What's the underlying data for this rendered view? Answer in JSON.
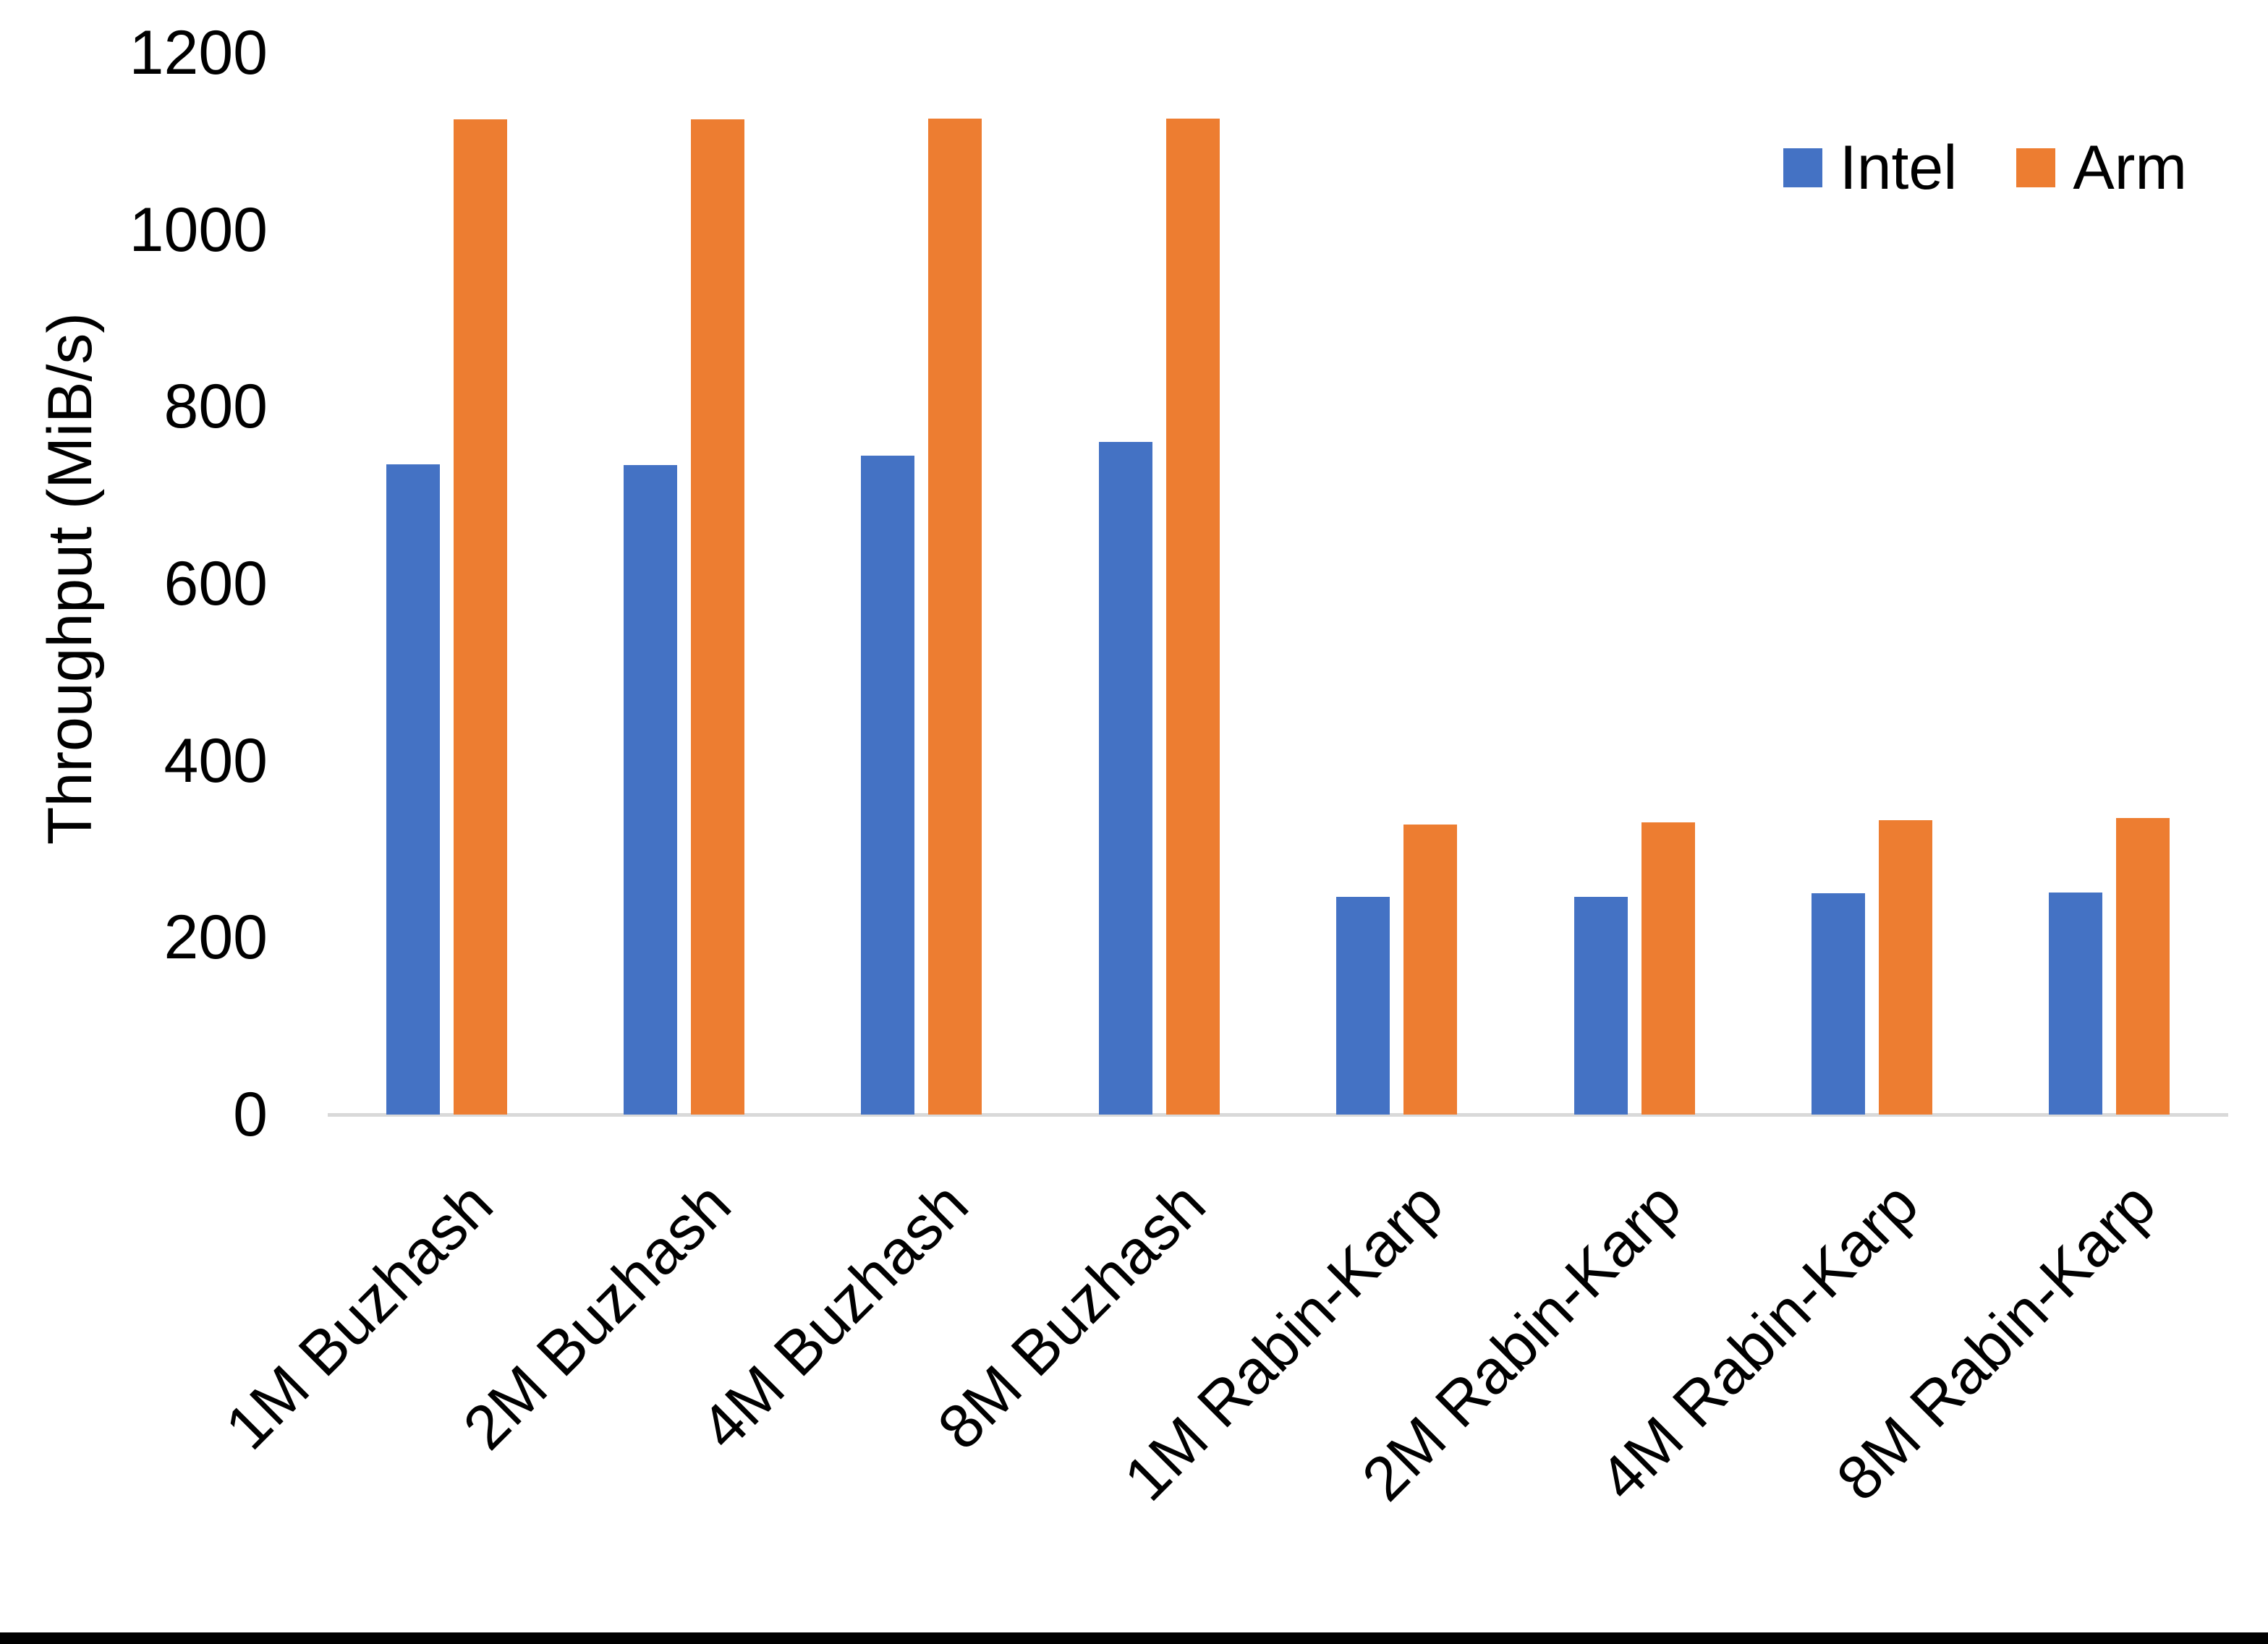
{
  "chart_data": {
    "type": "bar",
    "title": "",
    "xlabel": "",
    "ylabel": "Throughput (MiB/s)",
    "ylim": [
      0,
      1200
    ],
    "yticks": [
      0,
      200,
      400,
      600,
      800,
      1000,
      1200
    ],
    "grid": false,
    "legend_position": "top-right",
    "categories": [
      "1M Buzhash",
      "2M Buzhash",
      "4M Buzhash",
      "8M Buzhash",
      "1M Rabin-Karp",
      "2M Rabin-Karp",
      "4M Rabin-Karp",
      "8M Rabin-Karp"
    ],
    "series": [
      {
        "name": "Intel",
        "color": "#4472C4",
        "values": [
          735,
          734,
          745,
          760,
          246,
          246,
          250,
          251
        ]
      },
      {
        "name": "Arm",
        "color": "#ED7D31",
        "values": [
          1125,
          1125,
          1126,
          1126,
          328,
          330,
          333,
          335
        ]
      }
    ]
  },
  "colors": {
    "axis_line": "#D9D9D9",
    "text": "#000000",
    "bottom_edge_bar": "#000000"
  }
}
